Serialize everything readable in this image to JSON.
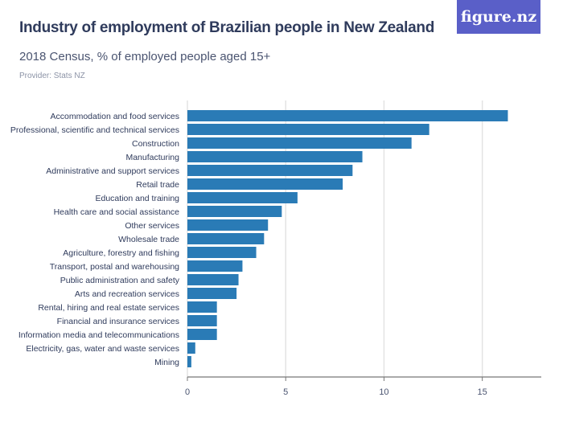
{
  "header": {
    "title": "Industry of employment of Brazilian people in New Zealand",
    "subtitle": "2018 Census, % of employed people aged 15+",
    "provider": "Provider: Stats NZ",
    "logo": "figure.nz"
  },
  "colors": {
    "bar": "#2a7bb6",
    "logo_bg": "#5a5fc8",
    "grid": "#e3e3e3"
  },
  "chart_data": {
    "type": "bar",
    "orientation": "horizontal",
    "title": "Industry of employment of Brazilian people in New Zealand",
    "subtitle": "2018 Census, % of employed people aged 15+",
    "categories": [
      "Accommodation and food services",
      "Professional, scientific and technical services",
      "Construction",
      "Manufacturing",
      "Administrative and support services",
      "Retail trade",
      "Education and training",
      "Health care and social assistance",
      "Other services",
      "Wholesale trade",
      "Agriculture, forestry and fishing",
      "Transport, postal and warehousing",
      "Public administration and safety",
      "Arts and recreation services",
      "Rental, hiring and real estate services",
      "Financial and insurance services",
      "Information media and telecommunications",
      "Electricity, gas, water and waste services",
      "Mining"
    ],
    "values": [
      16.3,
      12.3,
      11.4,
      8.9,
      8.4,
      7.9,
      5.6,
      4.8,
      4.1,
      3.9,
      3.5,
      2.8,
      2.6,
      2.5,
      1.5,
      1.5,
      1.5,
      0.4,
      0.2
    ],
    "xlim": [
      0,
      18
    ],
    "xticks": [
      0,
      5,
      10,
      15
    ],
    "grid": true
  }
}
